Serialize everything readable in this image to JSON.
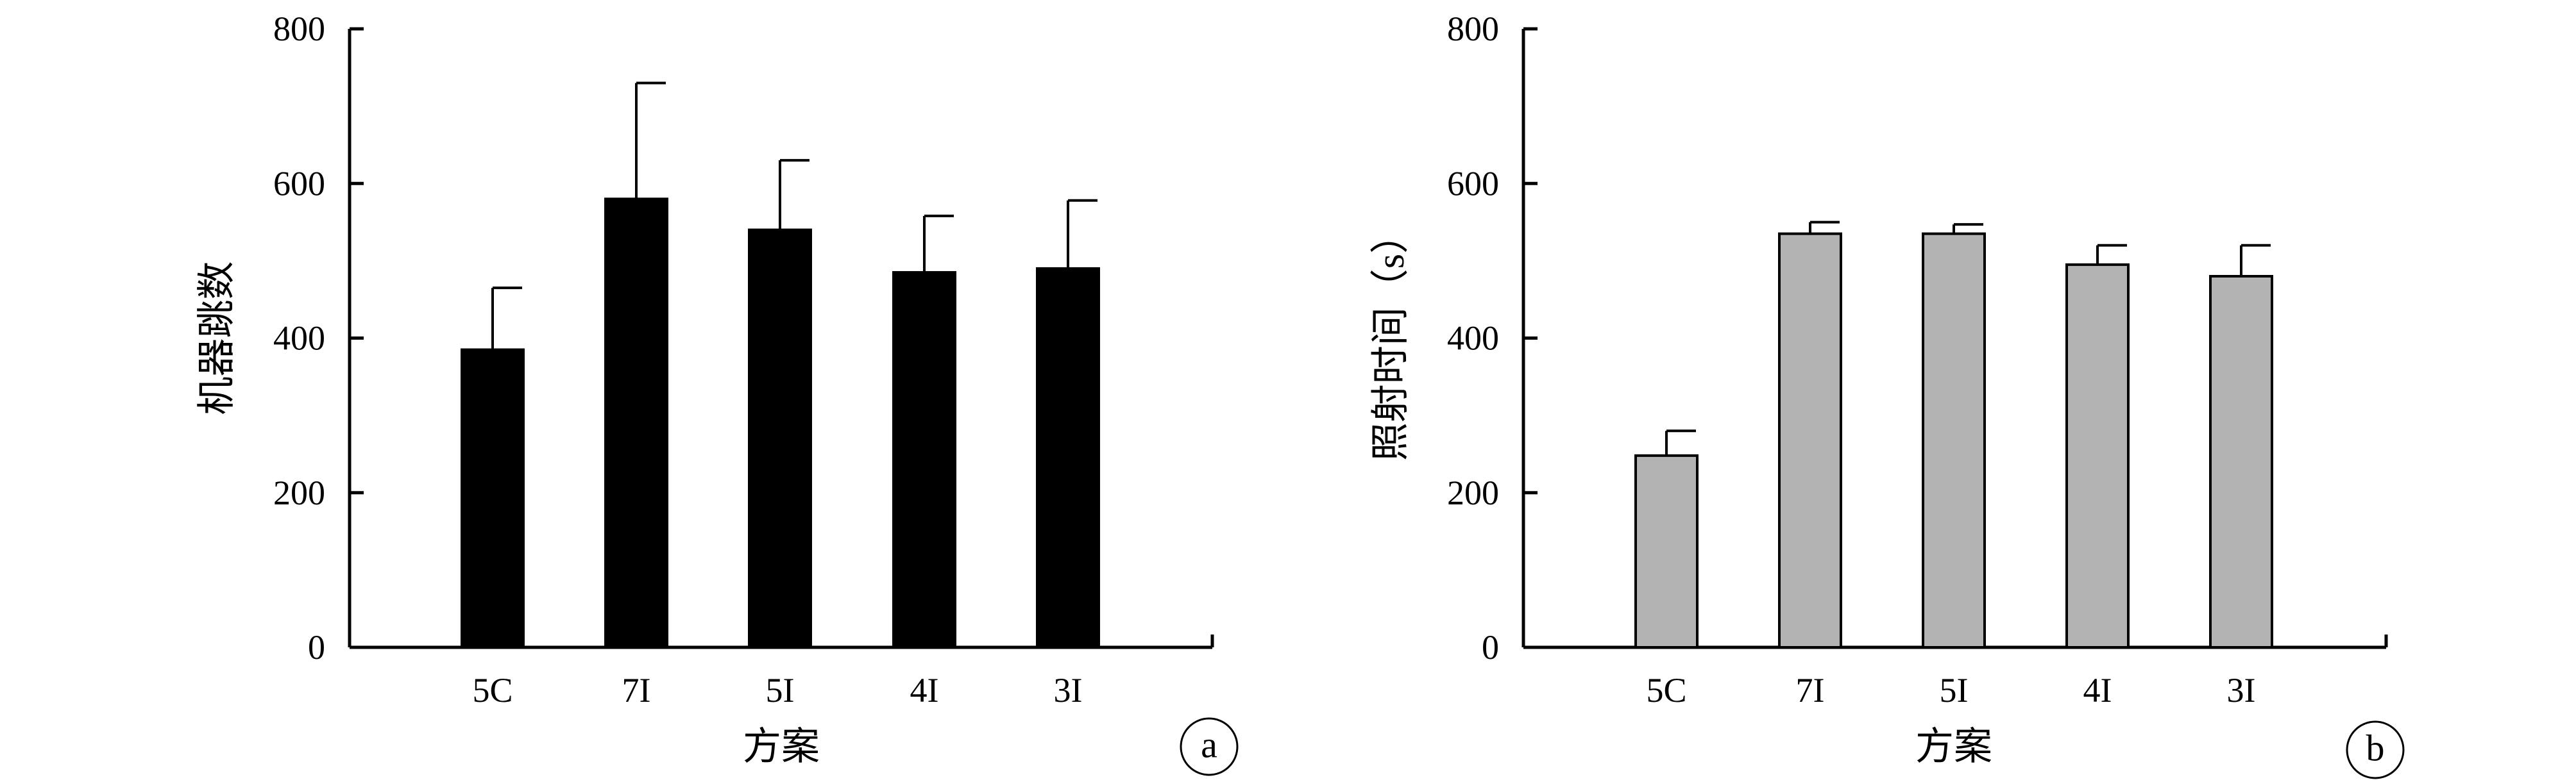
{
  "chart_data": [
    {
      "type": "bar",
      "panel_label": "a",
      "categories": [
        "5C",
        "7I",
        "5I",
        "4I",
        "3I"
      ],
      "values": [
        385,
        580,
        540,
        485,
        490
      ],
      "error_upper": [
        465,
        730,
        630,
        558,
        578
      ],
      "ylim": [
        0,
        800
      ],
      "yticks": [
        "0",
        "200",
        "400",
        "600",
        "800"
      ],
      "ylabel": "机器跳数",
      "xlabel": "方案",
      "bar_color": "#000000",
      "grid": false
    },
    {
      "type": "bar",
      "panel_label": "b",
      "categories": [
        "5C",
        "7I",
        "5I",
        "4I",
        "3I"
      ],
      "values": [
        248,
        535,
        535,
        495,
        480
      ],
      "error_upper": [
        280,
        550,
        547,
        520,
        520
      ],
      "ylim": [
        0,
        800
      ],
      "yticks": [
        "0",
        "200",
        "400",
        "600",
        "800"
      ],
      "ylabel": "照射时间（s）",
      "xlabel": "方案",
      "bar_color": "#b3b3b3",
      "grid": false
    }
  ]
}
